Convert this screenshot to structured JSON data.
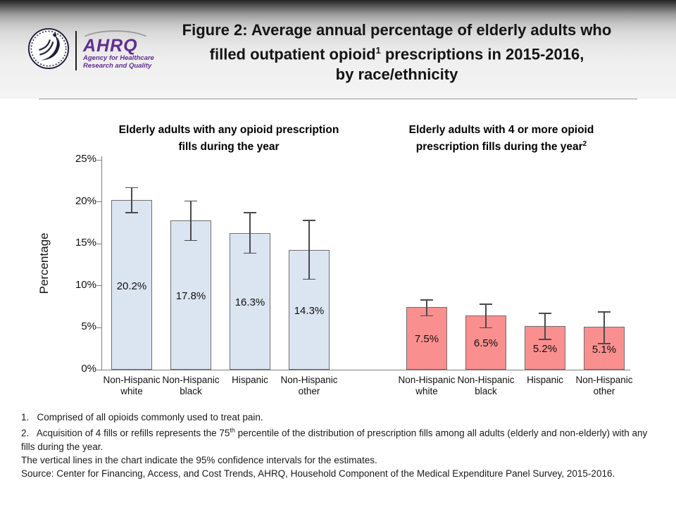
{
  "header": {
    "logo": {
      "ahrq_acronym": "AHRQ",
      "agency_name_line1": "Agency for Healthcare",
      "agency_name_line2": "Research and Quality"
    },
    "title_line1": "Figure 2: Average annual percentage of elderly adults who",
    "title_line2_pre": "filled outpatient opioid",
    "title_line2_sup": "1",
    "title_line2_post": " prescriptions in 2015-2016,",
    "title_line3": "by race/ethnicity"
  },
  "chart_data": {
    "type": "bar",
    "ylabel": "Percentage",
    "ylim": [
      0,
      25
    ],
    "ytick_values": [
      0,
      5,
      10,
      15,
      20,
      25
    ],
    "ytick_labels": [
      "0%",
      "5%",
      "10%",
      "15%",
      "20%",
      "25%"
    ],
    "grid": false,
    "error_bars": "95% confidence intervals shown as vertical lines",
    "groups": [
      {
        "title_line1": "Elderly adults with any opioid prescription",
        "title_line2": "fills during the year",
        "title_line2_sup": "",
        "bar_color": "#dbe5f1",
        "categories": [
          "Non-Hispanic white",
          "Non-Hispanic black",
          "Hispanic",
          "Non-Hispanic other"
        ],
        "values": [
          20.2,
          17.8,
          16.3,
          14.3
        ],
        "labels": [
          "20.2%",
          "17.8%",
          "16.3%",
          "14.3%"
        ],
        "ci_low": [
          18.7,
          15.4,
          13.9,
          10.8
        ],
        "ci_high": [
          21.7,
          20.1,
          18.7,
          17.8
        ]
      },
      {
        "title_line1": "Elderly adults with 4 or more opioid",
        "title_line2": "prescription fills during the year",
        "title_line2_sup": "2",
        "bar_color": "#f9908f",
        "categories": [
          "Non-Hispanic white",
          "Non-Hispanic black",
          "Hispanic",
          "Non-Hispanic other"
        ],
        "values": [
          7.5,
          6.5,
          5.2,
          5.1
        ],
        "labels": [
          "7.5%",
          "6.5%",
          "5.2%",
          "5.1%"
        ],
        "ci_low": [
          6.4,
          5.0,
          3.6,
          3.1
        ],
        "ci_high": [
          8.3,
          7.8,
          6.7,
          6.9
        ]
      }
    ]
  },
  "footnotes": {
    "note1": "1.   Comprised of all opioids commonly used to treat pain.",
    "note2_pre": "2.   Acquisition of 4 fills or refills represents the 75",
    "note2_sup": "th",
    "note2_post": " percentile of the distribution of prescription fills among all adults (elderly and non-elderly) with any fills during the year.",
    "note3": "The vertical lines in the chart indicate the 95% confidence intervals for the estimates.",
    "note4": "Source: Center for Financing, Access, and Cost Trends, AHRQ, Household Component of the Medical Expenditure Panel Survey, 2015-2016."
  },
  "colors": {
    "bar_fill_any": "#dbe5f1",
    "bar_fill_4plus": "#f9908f",
    "bar_border": "#6e6e6e",
    "error_bar": "#4a4a4a",
    "axis": "#7f7f7f",
    "ahrq_purple": "#5f2d91"
  }
}
